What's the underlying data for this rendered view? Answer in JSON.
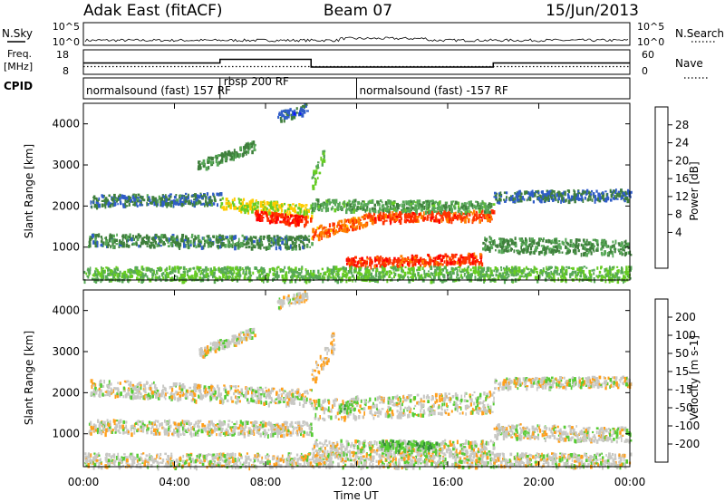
{
  "header": {
    "station": "Adak East (fitACF)",
    "beam": "Beam 07",
    "date": "15/Jun/2013"
  },
  "colors": {
    "power": [
      "#0a1aff",
      "#2f5cc8",
      "#3f7f3c",
      "#57a857",
      "#66cc22",
      "#ffcc00",
      "#ff7f00",
      "#ff3300",
      "#ff0000"
    ],
    "velocity": [
      "#1a33cc",
      "#2b7f9f",
      "#338a3a",
      "#55cc33",
      "#c8c8c4",
      "#ff9f1a",
      "#ff7f00",
      "#ff3300",
      "#ff0000"
    ]
  },
  "noise_panel": {
    "left_label": "N.Sky",
    "right_label": "N.Search",
    "left_ticks": [
      "10^5",
      "10^0"
    ],
    "right_ticks": [
      "10^5",
      "10^0"
    ]
  },
  "freq_panel": {
    "left_label_line1": "Freq.",
    "left_label_line2": "[MHz]",
    "right_label": "Nave",
    "left_ticks": [
      "18",
      "8"
    ],
    "right_ticks": [
      "60",
      "0"
    ],
    "freq_series": [
      {
        "from": 0,
        "to": 6,
        "value": 12.6
      },
      {
        "from": 6,
        "to": 10,
        "value": 14.2
      },
      {
        "from": 10,
        "to": 18,
        "value": 10.8
      },
      {
        "from": 18,
        "to": 24,
        "value": 12.6
      }
    ],
    "nave_level": 18
  },
  "cpid_panel": {
    "label": "CPID",
    "segments": [
      {
        "text": "normalsound (fast) 157 RF",
        "start": 0,
        "end": 6
      },
      {
        "text": "rbsp 200 RF",
        "start": 6,
        "end": 12
      },
      {
        "text": "normalsound (fast) -157 RF",
        "start": 12,
        "end": 24
      }
    ]
  },
  "time_axis": {
    "label": "Time UT",
    "range_hours": [
      0,
      24
    ],
    "ticks": [
      "00:00",
      "04:00",
      "08:00",
      "12:00",
      "16:00",
      "20:00",
      "00:00"
    ]
  },
  "chart_data": [
    {
      "type": "heatmap",
      "ylabel": "Slant Range [km]",
      "ylim": [
        200,
        4500
      ],
      "yticks": [
        1000,
        2000,
        3000,
        4000
      ],
      "colorbar_label": "Power [dB]",
      "colorbar_ticks": [
        "28",
        "24",
        "20",
        "16",
        "12",
        "8",
        "4"
      ],
      "scale_range": [
        0,
        32
      ],
      "bands": [
        {
          "t0": 0.3,
          "t1": 6.0,
          "r_start": 2150,
          "r_end": 2200,
          "width": 140,
          "value": 8
        },
        {
          "t0": 6.0,
          "t1": 10.0,
          "r_start": 2100,
          "r_end": 1900,
          "width": 150,
          "value": 18
        },
        {
          "t0": 7.5,
          "t1": 10.0,
          "r_start": 1800,
          "r_end": 1650,
          "width": 110,
          "value": 28
        },
        {
          "t0": 10.0,
          "t1": 12.5,
          "r_start": 1350,
          "r_end": 1700,
          "width": 150,
          "value": 24
        },
        {
          "t0": 12.5,
          "t1": 18.0,
          "r_start": 1750,
          "r_end": 1800,
          "width": 120,
          "value": 26
        },
        {
          "t0": 10.0,
          "t1": 18.0,
          "r_start": 2050,
          "r_end": 2000,
          "width": 140,
          "value": 12
        },
        {
          "t0": 0.2,
          "t1": 10.0,
          "r_start": 1200,
          "r_end": 1150,
          "width": 150,
          "value": 9
        },
        {
          "t0": 11.5,
          "t1": 17.5,
          "r_start": 650,
          "r_end": 750,
          "width": 130,
          "value": 27
        },
        {
          "t0": 17.5,
          "t1": 24.0,
          "r_start": 1100,
          "r_end": 1000,
          "width": 180,
          "value": 10
        },
        {
          "t0": 18.0,
          "t1": 24.0,
          "r_start": 2250,
          "r_end": 2300,
          "width": 130,
          "value": 7
        },
        {
          "t0": 0.0,
          "t1": 24.0,
          "r_start": 380,
          "r_end": 380,
          "width": 170,
          "value": 14
        },
        {
          "t0": 5.0,
          "t1": 7.5,
          "r_start": 3000,
          "r_end": 3500,
          "width": 120,
          "value": 10
        },
        {
          "t0": 8.5,
          "t1": 9.8,
          "r_start": 4200,
          "r_end": 4400,
          "width": 120,
          "value": 6
        },
        {
          "t0": 10.0,
          "t1": 10.6,
          "r_start": 2600,
          "r_end": 3300,
          "width": 200,
          "value": 15
        }
      ]
    },
    {
      "type": "heatmap",
      "ylabel": "Slant Range [km]",
      "ylim": [
        200,
        4500
      ],
      "yticks": [
        1000,
        2000,
        3000,
        4000
      ],
      "colorbar_label": "Velocity [m s-1]",
      "colorbar_ticks": [
        "200",
        "100",
        "50",
        "15",
        "-15",
        "-50",
        "-100",
        "-200"
      ],
      "scale_range": [
        -240,
        240
      ],
      "bands": [
        {
          "t0": 0.3,
          "t1": 10.0,
          "r_start": 2150,
          "r_end": 1900,
          "width": 200,
          "value": 0
        },
        {
          "t0": 10.0,
          "t1": 18.0,
          "r_start": 1600,
          "r_end": 1800,
          "width": 260,
          "value": 0
        },
        {
          "t0": 0.2,
          "t1": 10.0,
          "r_start": 1200,
          "r_end": 1150,
          "width": 170,
          "value": 0
        },
        {
          "t0": 10.0,
          "t1": 18.0,
          "r_start": 700,
          "r_end": 700,
          "width": 170,
          "value": 0
        },
        {
          "t0": 13.0,
          "t1": 15.5,
          "r_start": 750,
          "r_end": 700,
          "width": 130,
          "value": -60
        },
        {
          "t0": 11.2,
          "t1": 12.0,
          "r_start": 1600,
          "r_end": 1800,
          "width": 140,
          "value": -40
        },
        {
          "t0": 18.0,
          "t1": 24.0,
          "r_start": 1100,
          "r_end": 1000,
          "width": 180,
          "value": 0
        },
        {
          "t0": 18.0,
          "t1": 24.0,
          "r_start": 2250,
          "r_end": 2300,
          "width": 130,
          "value": 0
        },
        {
          "t0": 10.0,
          "t1": 11.0,
          "r_start": 2400,
          "r_end": 3300,
          "width": 250,
          "value": 30
        },
        {
          "t0": 0.0,
          "t1": 24.0,
          "r_start": 380,
          "r_end": 380,
          "width": 170,
          "value": 0
        },
        {
          "t0": 5.0,
          "t1": 7.5,
          "r_start": 3000,
          "r_end": 3500,
          "width": 120,
          "value": 0
        },
        {
          "t0": 8.5,
          "t1": 9.8,
          "r_start": 4200,
          "r_end": 4400,
          "width": 120,
          "value": 0
        }
      ]
    }
  ]
}
